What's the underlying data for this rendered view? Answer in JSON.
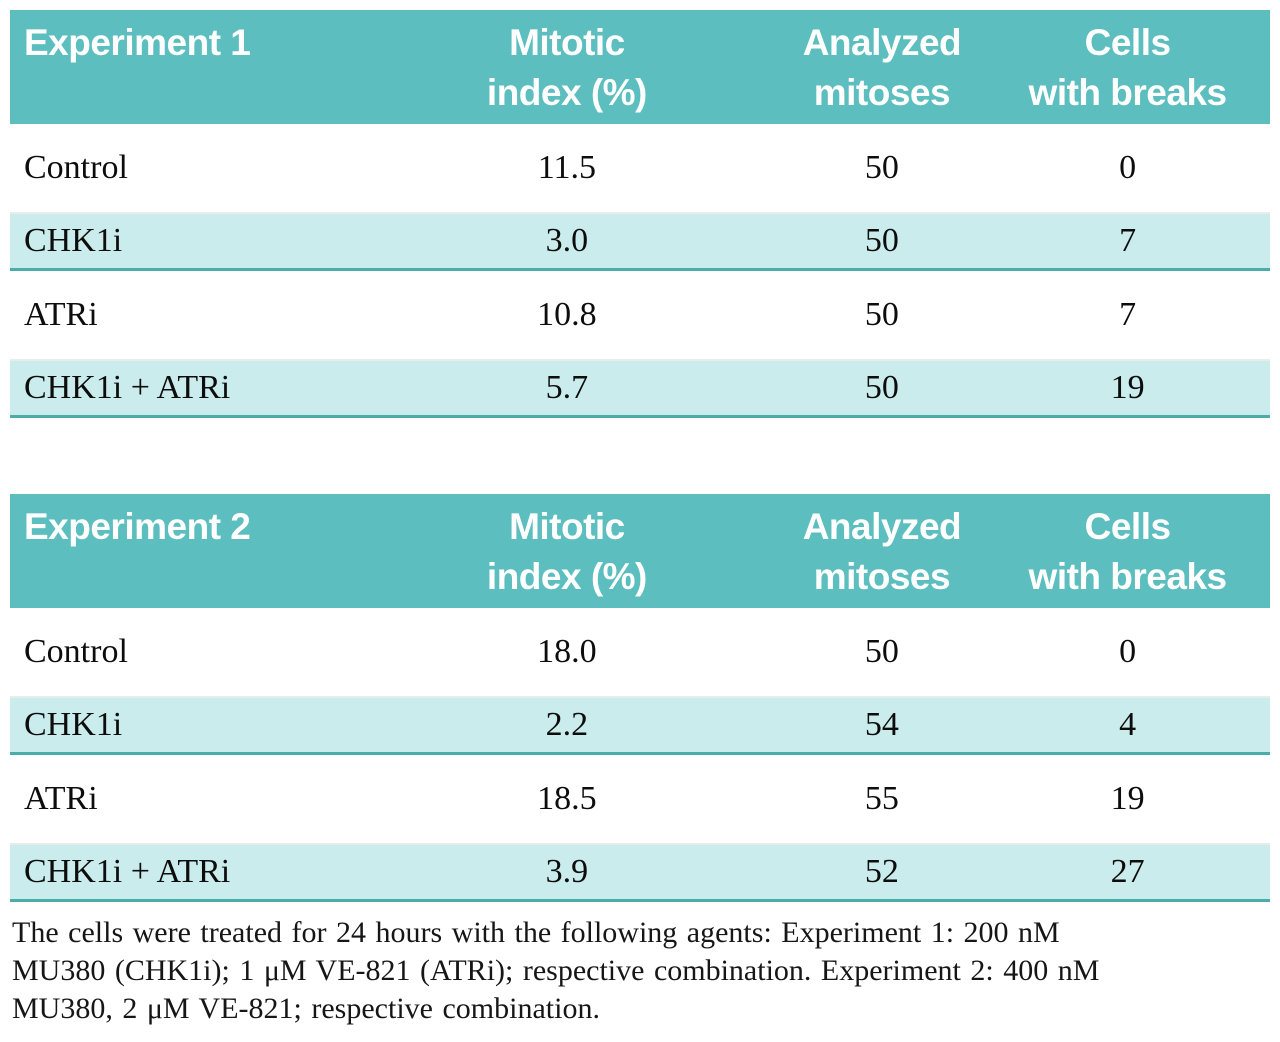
{
  "colors": {
    "header_bg": "#5cbebe",
    "row_alt_bg": "#cbecec",
    "rule_strong": "#4cabab",
    "rule_faint": "#e9ece9",
    "header_text": "#ffffff",
    "body_text": "#0d0d0d"
  },
  "tables": [
    {
      "title": "Experiment 1",
      "col_headers": [
        "Mitotic\nindex (%)",
        "Analyzed\nmitoses",
        "Cells\nwith breaks"
      ],
      "rows": [
        {
          "cells": [
            "Control",
            "11.5",
            "50",
            "0"
          ]
        },
        {
          "cells": [
            "CHK1i",
            "3.0",
            "50",
            "7"
          ]
        },
        {
          "cells": [
            "ATRi",
            "10.8",
            "50",
            "7"
          ]
        },
        {
          "cells": [
            "CHK1i + ATRi",
            "5.7",
            "50",
            "19"
          ]
        }
      ]
    },
    {
      "title": "Experiment 2",
      "col_headers": [
        "Mitotic\nindex (%)",
        "Analyzed\nmitoses",
        "Cells\nwith breaks"
      ],
      "rows": [
        {
          "cells": [
            "Control",
            "18.0",
            "50",
            "0"
          ]
        },
        {
          "cells": [
            "CHK1i",
            "2.2",
            "54",
            "4"
          ]
        },
        {
          "cells": [
            "ATRi",
            "18.5",
            "55",
            "19"
          ]
        },
        {
          "cells": [
            "CHK1i + ATRi",
            "3.9",
            "52",
            "27"
          ]
        }
      ]
    }
  ],
  "caption": {
    "lines": [
      "The cells were treated for 24 hours with the following agents: Experiment 1: 200 nM",
      "MU380 (CHK1i); 1 μM VE-821 (ATRi); respective combination. Experiment 2: 400 nM",
      "MU380, 2 μM VE-821; respective combination."
    ]
  },
  "chart_data": [
    {
      "type": "table",
      "title": "Experiment 1",
      "columns": [
        "Experiment 1",
        "Mitotic index (%)",
        "Analyzed mitoses",
        "Cells with breaks"
      ],
      "rows": [
        [
          "Control",
          11.5,
          50,
          0
        ],
        [
          "CHK1i",
          3.0,
          50,
          7
        ],
        [
          "ATRi",
          10.8,
          50,
          7
        ],
        [
          "CHK1i + ATRi",
          5.7,
          50,
          19
        ]
      ]
    },
    {
      "type": "table",
      "title": "Experiment 2",
      "columns": [
        "Experiment 2",
        "Mitotic index (%)",
        "Analyzed mitoses",
        "Cells with breaks"
      ],
      "rows": [
        [
          "Control",
          18.0,
          50,
          0
        ],
        [
          "CHK1i",
          2.2,
          54,
          4
        ],
        [
          "ATRi",
          18.5,
          55,
          19
        ],
        [
          "CHK1i + ATRi",
          3.9,
          52,
          27
        ]
      ]
    }
  ]
}
